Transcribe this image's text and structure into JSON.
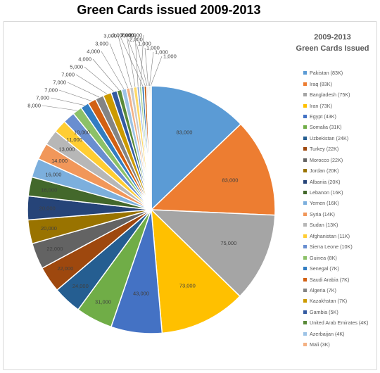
{
  "title": "Green Cards issued 2009-2013",
  "chart_data": {
    "type": "pie",
    "title": "Green Cards issued 2009-2013",
    "chart_title_line1": "2009-2013",
    "chart_title_line2": "Green Cards Issued",
    "legend_position": "right",
    "slices": [
      {
        "legend": "Pakistan (83K)",
        "value": 83000,
        "label": "83,000",
        "color": "#5b9bd5"
      },
      {
        "legend": "Iraq (83K)",
        "value": 83000,
        "label": "83,000",
        "color": "#ed7d31"
      },
      {
        "legend": "Bangladesh (75K)",
        "value": 75000,
        "label": "75,000",
        "color": "#a5a5a5"
      },
      {
        "legend": "Iran (73K)",
        "value": 73000,
        "label": "73,000",
        "color": "#ffc000"
      },
      {
        "legend": "Egypt (43K)",
        "value": 43000,
        "label": "43,000",
        "color": "#4472c4"
      },
      {
        "legend": "Somalia (31K)",
        "value": 31000,
        "label": "31,000",
        "color": "#70ad47"
      },
      {
        "legend": "Uzbekistan (24K)",
        "value": 24000,
        "label": "24,000",
        "color": "#255e91"
      },
      {
        "legend": "Turkey (22K)",
        "value": 22000,
        "label": "22,000",
        "color": "#9e480e"
      },
      {
        "legend": "Morocco (22K)",
        "value": 22000,
        "label": "22,000",
        "color": "#636363"
      },
      {
        "legend": "Jordan (20K)",
        "value": 20000,
        "label": "20,000",
        "color": "#997300"
      },
      {
        "legend": "Albania (20K)",
        "value": 20000,
        "label": "20,000",
        "color": "#264478"
      },
      {
        "legend": "Lebanon (16K)",
        "value": 16000,
        "label": "16,000",
        "color": "#43682b"
      },
      {
        "legend": "Yemen (16K)",
        "value": 16000,
        "label": "16,000",
        "color": "#7cafdd"
      },
      {
        "legend": "Syria (14K)",
        "value": 14000,
        "label": "14,000",
        "color": "#f1975a"
      },
      {
        "legend": "Sudan (13K)",
        "value": 13000,
        "label": "13,000",
        "color": "#b7b7b7"
      },
      {
        "legend": "Afghanistan (11K)",
        "value": 11000,
        "label": "11,000",
        "color": "#ffcd33"
      },
      {
        "legend": "Sierra Leone (10K)",
        "value": 10000,
        "label": "10,000",
        "color": "#698ed0"
      },
      {
        "legend": "Guinea (8K)",
        "value": 8000,
        "label": "8,000",
        "color": "#8cc168"
      },
      {
        "legend": "Senegal (7K)",
        "value": 7000,
        "label": "7,000",
        "color": "#327dc2"
      },
      {
        "legend": "Saudi Arabia (7K)",
        "value": 7000,
        "label": "7,000",
        "color": "#d26012"
      },
      {
        "legend": "Algeria (7K)",
        "value": 7000,
        "label": "7,000",
        "color": "#848484"
      },
      {
        "legend": "Kazakhstan (7K)",
        "value": 7000,
        "label": "7,000",
        "color": "#cc9a00"
      },
      {
        "legend": "Gambia (5K)",
        "value": 5000,
        "label": "5,000",
        "color": "#335aa1"
      },
      {
        "legend": "United Arab Emirates (4K)",
        "value": 4000,
        "label": "4,000",
        "color": "#5a8a39"
      },
      {
        "legend": "Azerbaijan (4K)",
        "value": 4000,
        "label": "4,000",
        "color": "#9dc3e6"
      },
      {
        "legend": "Mali (3K)",
        "value": 3000,
        "label": "3,000",
        "color": "#f4b183"
      },
      {
        "legend": "",
        "value": 3000,
        "label": "3,000",
        "color": "#c9c9c9"
      },
      {
        "legend": "",
        "value": 3000,
        "label": "3,000",
        "color": "#ffd966"
      },
      {
        "legend": "",
        "value": 2000,
        "label": "2,000",
        "color": "#8faadc"
      },
      {
        "legend": "",
        "value": 2000,
        "label": "2,000",
        "color": "#a9d18e"
      },
      {
        "legend": "",
        "value": 2000,
        "label": "2,000",
        "color": "#2e75b6"
      },
      {
        "legend": "",
        "value": 2000,
        "label": "2,000",
        "color": "#c55a11"
      },
      {
        "legend": "",
        "value": 1000,
        "label": "1,000",
        "color": "#7f7f7f"
      },
      {
        "legend": "",
        "value": 1000,
        "label": "1,000",
        "color": "#bf9000"
      },
      {
        "legend": "",
        "value": 1000,
        "label": "1,000",
        "color": "#2f5597"
      },
      {
        "legend": "",
        "value": 1000,
        "label": "1,000",
        "color": "#548235"
      }
    ]
  }
}
